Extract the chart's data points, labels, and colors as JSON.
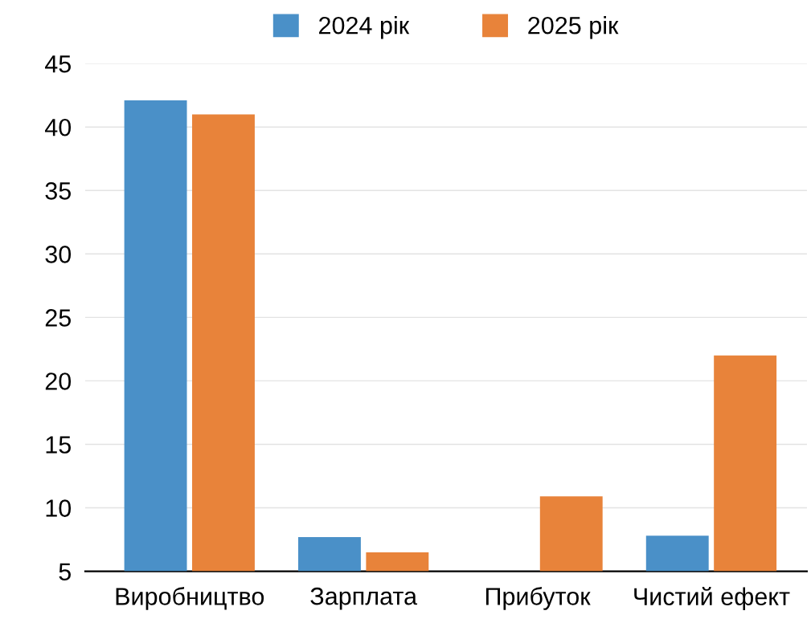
{
  "chart_data": {
    "type": "bar",
    "categories": [
      "Виробництво",
      "Зарплата",
      "Прибуток",
      "Чистий ефект"
    ],
    "series": [
      {
        "name": "2024 рік",
        "color": "#4a90c8",
        "values": [
          42.1,
          7.7,
          null,
          7.8
        ]
      },
      {
        "name": "2025 рік",
        "color": "#e8833a",
        "values": [
          41.0,
          6.5,
          10.9,
          22.0
        ]
      }
    ],
    "ylim": [
      5,
      45
    ],
    "yticks": [
      5,
      10,
      15,
      20,
      25,
      30,
      35,
      40,
      45
    ],
    "grid": "y",
    "legend": "top"
  }
}
